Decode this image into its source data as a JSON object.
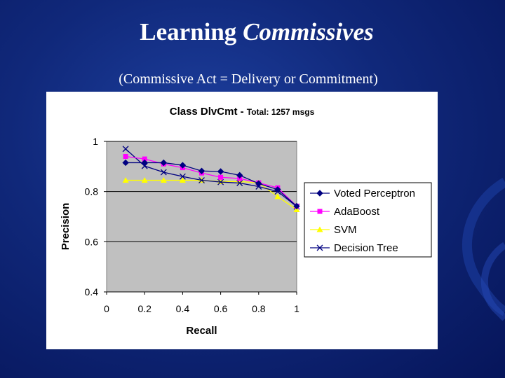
{
  "slide": {
    "title_plain": "Learning ",
    "title_italic": "Commissives",
    "subtitle": "(Commissive Act = Delivery or Commitment)"
  },
  "colors": {
    "background": "#10287a",
    "plot_area": "#c0c0c0",
    "voted_perceptron": "#000080",
    "adaboost": "#ff00ff",
    "svm": "#ffff00",
    "decision_tree": "#000080"
  },
  "chart_data": {
    "type": "line",
    "title": "Class DlvCmt - ",
    "subtitle": "Total: 1257 msgs",
    "xlabel": "Recall",
    "ylabel": "Precision",
    "xlim": [
      0,
      1
    ],
    "ylim": [
      0.4,
      1
    ],
    "x_ticks": [
      "0",
      "0.2",
      "0.4",
      "0.6",
      "0.8",
      "1"
    ],
    "y_ticks": [
      "0.4",
      "0.6",
      "0.8",
      "1"
    ],
    "grid": "horizontal",
    "legend_position": "right",
    "series": [
      {
        "name": "Voted Perceptron",
        "marker": "diamond",
        "color": "#000080",
        "x": [
          0.1,
          0.2,
          0.3,
          0.4,
          0.5,
          0.6,
          0.7,
          0.8,
          0.9,
          1.0
        ],
        "y": [
          0.915,
          0.915,
          0.915,
          0.905,
          0.882,
          0.88,
          0.865,
          0.832,
          0.808,
          0.742
        ]
      },
      {
        "name": "AdaBoost",
        "marker": "square",
        "color": "#ff00ff",
        "x": [
          0.1,
          0.2,
          0.3,
          0.4,
          0.5,
          0.6,
          0.7,
          0.8,
          0.9,
          1.0
        ],
        "y": [
          0.94,
          0.93,
          0.91,
          0.895,
          0.874,
          0.857,
          0.852,
          0.835,
          0.815,
          0.742
        ]
      },
      {
        "name": "SVM",
        "marker": "triangle",
        "color": "#ffff00",
        "x": [
          0.1,
          0.2,
          0.3,
          0.4,
          0.5,
          0.6,
          0.7,
          0.8,
          0.9,
          1.0
        ],
        "y": [
          0.845,
          0.845,
          0.845,
          0.845,
          0.845,
          0.84,
          0.84,
          0.835,
          0.78,
          0.728
        ]
      },
      {
        "name": "Decision Tree",
        "marker": "x",
        "color": "#000080",
        "x": [
          0.1,
          0.2,
          0.3,
          0.4,
          0.5,
          0.6,
          0.7,
          0.8,
          0.9,
          1.0
        ],
        "y": [
          0.97,
          0.902,
          0.877,
          0.86,
          0.845,
          0.838,
          0.834,
          0.82,
          0.8,
          0.74
        ]
      }
    ]
  }
}
